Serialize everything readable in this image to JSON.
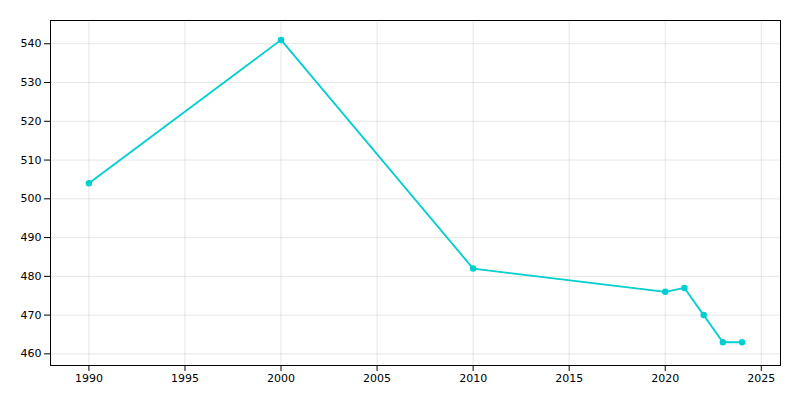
{
  "chart_data": {
    "type": "line",
    "x": [
      1990,
      2000,
      2010,
      2020,
      2021,
      2022,
      2023,
      2024
    ],
    "values": [
      504,
      541,
      482,
      476,
      477,
      470,
      463,
      463
    ],
    "color": "#00CED1",
    "marker": "o",
    "xlim": [
      1988,
      2026
    ],
    "ylim": [
      457,
      546
    ],
    "xticks": [
      1990,
      1995,
      2000,
      2005,
      2010,
      2015,
      2020,
      2025
    ],
    "yticks": [
      460,
      470,
      480,
      490,
      500,
      510,
      520,
      530,
      540
    ],
    "grid": true
  }
}
